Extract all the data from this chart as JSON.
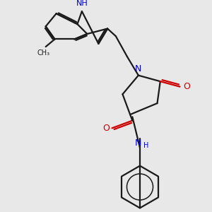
{
  "bg_color": "#e8e8e8",
  "bond_color": "#1a1a1a",
  "n_color": "#0000cc",
  "o_color": "#cc0000",
  "font_size": 8,
  "line_width": 1.6,
  "figsize": [
    3.0,
    3.0
  ],
  "dpi": 100,
  "xlim": [
    30,
    270
  ],
  "ylim": [
    20,
    290
  ]
}
